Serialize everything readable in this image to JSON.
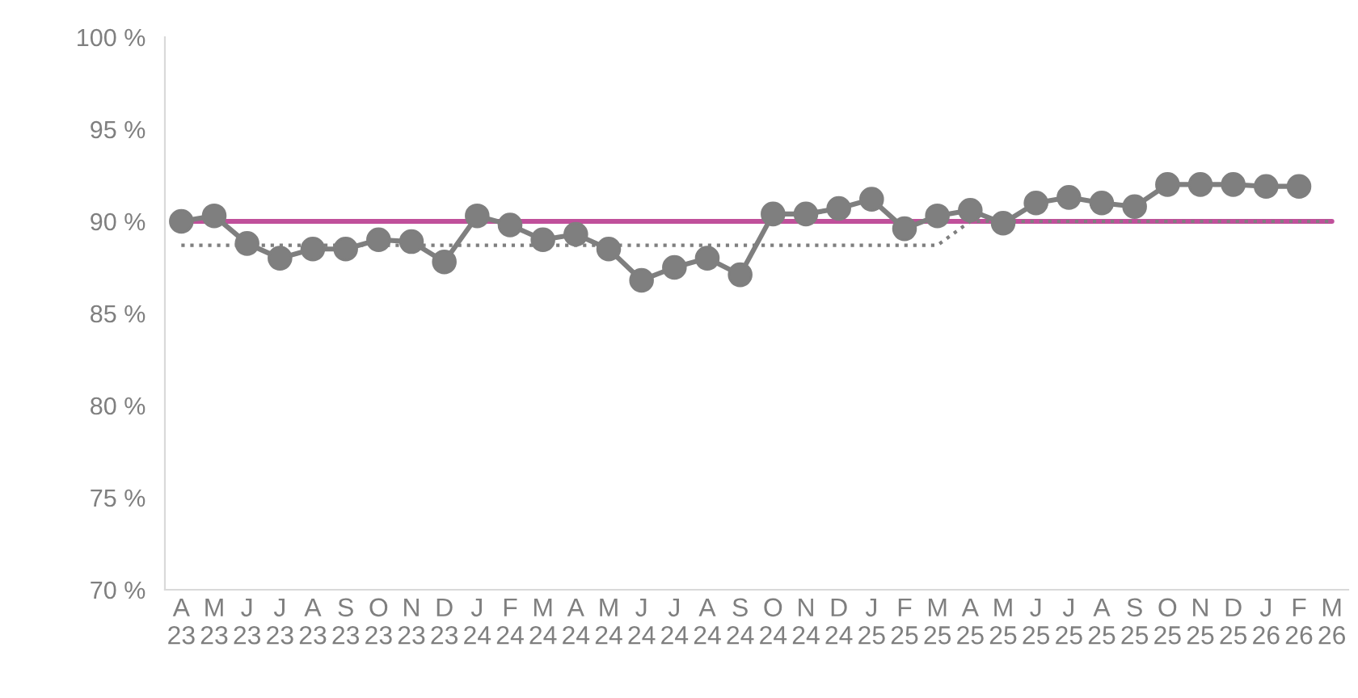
{
  "chart_data": {
    "type": "line",
    "categories": [
      "A\n23",
      "M\n23",
      "J\n23",
      "J\n23",
      "A\n23",
      "S\n23",
      "O\n23",
      "N\n23",
      "D\n23",
      "J\n24",
      "F\n24",
      "M\n24",
      "A\n24",
      "M\n24",
      "J\n24",
      "J\n24",
      "A\n24",
      "S\n24",
      "O\n24",
      "N\n24",
      "D\n24",
      "J\n25",
      "F\n25",
      "M\n25",
      "A\n25",
      "M\n25",
      "J\n25",
      "J\n25",
      "A\n25",
      "S\n25",
      "O\n25",
      "N\n25",
      "D\n25",
      "J\n26",
      "F\n26",
      "M\n26"
    ],
    "series": [
      {
        "color": "#c0509b",
        "line_style": "solid",
        "marker": "none",
        "values": [
          90,
          90,
          90,
          90,
          90,
          90,
          90,
          90,
          90,
          90,
          90,
          90,
          90,
          90,
          90,
          90,
          90,
          90,
          90,
          90,
          90,
          90,
          90,
          90,
          90,
          90,
          90,
          90,
          90,
          90,
          90,
          90,
          90,
          90,
          90,
          90
        ]
      },
      {
        "color": "#7f7f7f",
        "line_style": "dotted",
        "marker": "none",
        "values": [
          88.7,
          88.7,
          88.7,
          88.7,
          88.7,
          88.7,
          88.7,
          88.7,
          88.7,
          88.7,
          88.7,
          88.7,
          88.7,
          88.7,
          88.7,
          88.7,
          88.7,
          88.7,
          88.7,
          88.7,
          88.7,
          88.7,
          88.7,
          88.7,
          90,
          90,
          90,
          90,
          90,
          90,
          90,
          90,
          90,
          90,
          90,
          90
        ]
      },
      {
        "color": "#7f7f7f",
        "line_style": "solid",
        "marker": "circle",
        "values": [
          90.0,
          90.3,
          88.8,
          88.0,
          88.5,
          88.5,
          89.0,
          88.9,
          87.8,
          90.3,
          89.8,
          89.0,
          89.3,
          88.5,
          86.8,
          87.5,
          88.0,
          87.1,
          90.4,
          90.4,
          90.7,
          91.2,
          89.6,
          90.3,
          90.6,
          89.9,
          91.0,
          91.3,
          91.0,
          90.8,
          92.0,
          92.0,
          92.0,
          91.9,
          91.9,
          null
        ]
      }
    ],
    "ylim": [
      70,
      100
    ],
    "yticks": [
      {
        "value": 70,
        "label": "70 %"
      },
      {
        "value": 75,
        "label": "75 %"
      },
      {
        "value": 80,
        "label": "80 %"
      },
      {
        "value": 85,
        "label": "85 %"
      },
      {
        "value": 90,
        "label": "90 %"
      },
      {
        "value": 95,
        "label": "95 %"
      },
      {
        "value": 100,
        "label": "100 %"
      }
    ],
    "grid": false
  }
}
